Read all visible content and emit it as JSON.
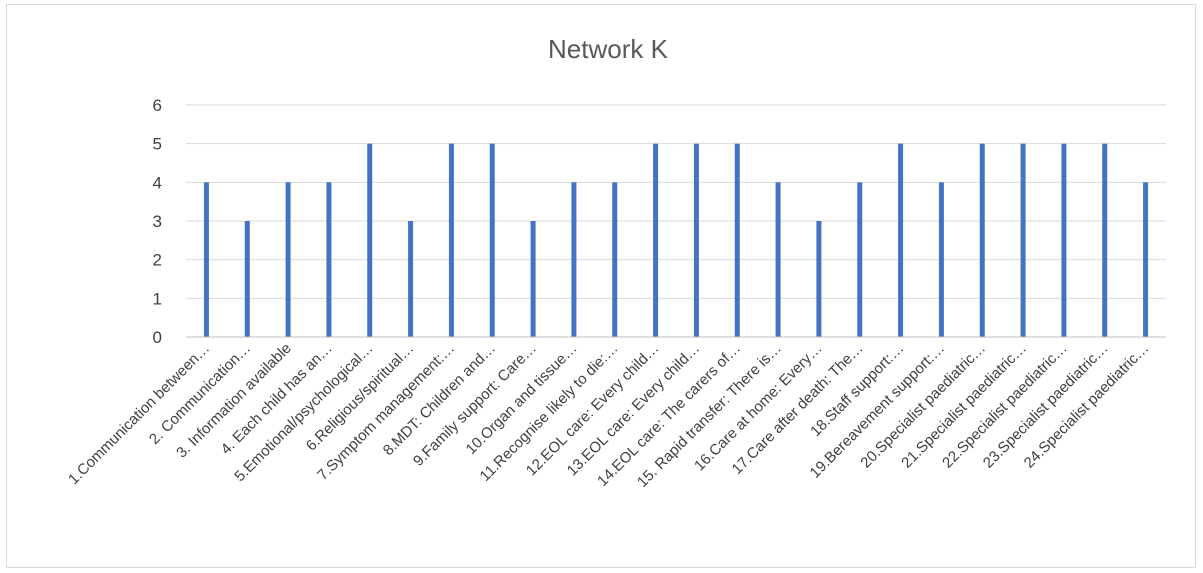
{
  "chart_data": {
    "type": "bar",
    "title": "Network K",
    "xlabel": "",
    "ylabel": "",
    "ylim": [
      0,
      6
    ],
    "yticks": [
      0,
      1,
      2,
      3,
      4,
      5,
      6
    ],
    "grid": true,
    "legend": "none",
    "bar_color": "#4472C4",
    "categories": [
      "1.Communication between…",
      "2. Communication…",
      "3. Information available",
      "4. Each child has an…",
      "5.Emotional/psychological…",
      "6.Religious/spiritual…",
      "7.Symptom management:…",
      "8.MDT: Children and…",
      "9.Family support: Care…",
      "10.Organ and tissue…",
      "11.Recognise likely to die:…",
      "12.EOL care: Every child…",
      "13.EOL care: Every child…",
      "14.EOL care: The carers of…",
      "15. Rapid transfer: There is…",
      "16.Care at home: Every…",
      "17.Care after death: The…",
      "18.Staff support:…",
      "19.Bereavement support:…",
      "20.Specialist paediatric…",
      "21.Specialist paediatric…",
      "22.Specialist paediatric…",
      "23.Specialist paediatric…",
      "24.Specialist paediatric…"
    ],
    "values": [
      4,
      3,
      4,
      4,
      5,
      3,
      5,
      5,
      3,
      4,
      4,
      5,
      5,
      5,
      4,
      3,
      4,
      5,
      4,
      5,
      5,
      5,
      5,
      4
    ]
  }
}
